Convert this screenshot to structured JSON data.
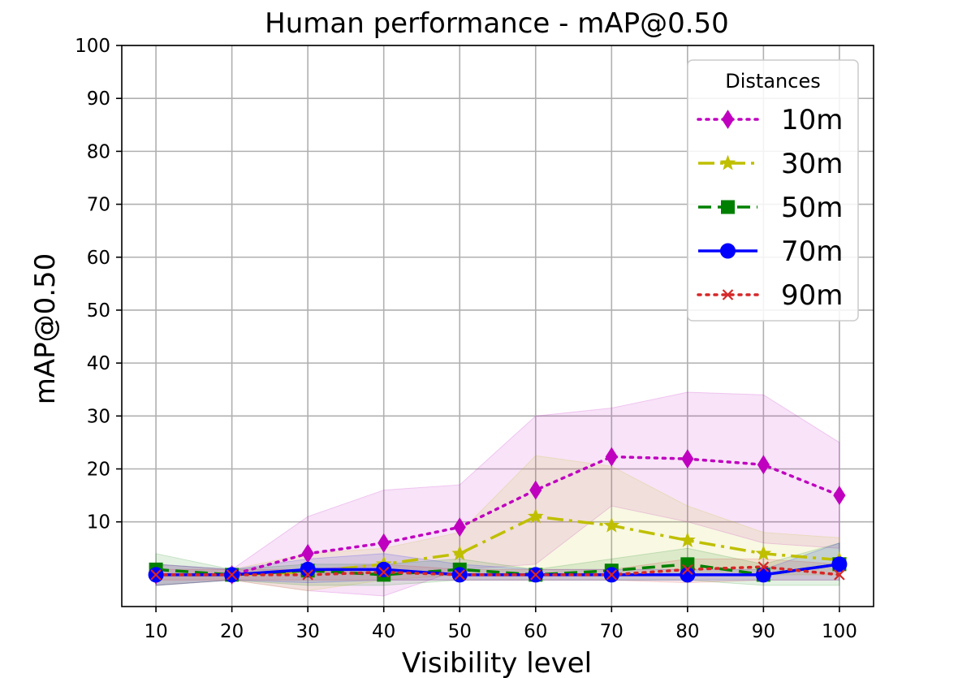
{
  "chart_data": {
    "type": "line",
    "title": "Human performance - mAP@0.50",
    "xlabel": "Visibility level",
    "ylabel": "mAP@0.50",
    "x": [
      10,
      20,
      30,
      40,
      50,
      60,
      70,
      80,
      90,
      100
    ],
    "xlim": [
      5.5,
      104.5
    ],
    "ylim": [
      -6,
      100
    ],
    "xticks": [
      "10",
      "20",
      "30",
      "40",
      "50",
      "60",
      "70",
      "80",
      "90",
      "100"
    ],
    "yticks": [
      "10",
      "20",
      "30",
      "40",
      "50",
      "60",
      "70",
      "80",
      "90",
      "100"
    ],
    "grid": true,
    "legend_title": "Distances",
    "legend_position": "upper right",
    "series": [
      {
        "name": "10m",
        "color": "#bf00bf",
        "linestyle": "dotted",
        "marker": "thin-diamond",
        "values": [
          0,
          0,
          4,
          6,
          9,
          16,
          22.3,
          21.9,
          20.8,
          15
        ],
        "lower": [
          -2,
          -1,
          -3,
          -4,
          1,
          2,
          13,
          10,
          6,
          5
        ],
        "upper": [
          2,
          1,
          11,
          16,
          17,
          30,
          31.5,
          34.5,
          34,
          25
        ]
      },
      {
        "name": "30m",
        "color": "#bfbf00",
        "linestyle": "dashdot",
        "marker": "star",
        "values": [
          0,
          0,
          0.5,
          2,
          4,
          11,
          9.3,
          6.5,
          4,
          2.8
        ],
        "lower": [
          -2,
          -1,
          -3,
          -1,
          0,
          0,
          0,
          0,
          0,
          0
        ],
        "upper": [
          2,
          1,
          4,
          5,
          8,
          22.5,
          20.5,
          13,
          8,
          7
        ]
      },
      {
        "name": "50m",
        "color": "#008000",
        "linestyle": "dashed",
        "marker": "square",
        "values": [
          1,
          0,
          0.8,
          0,
          1,
          0,
          0.8,
          2,
          0,
          2
        ],
        "lower": [
          -2,
          -1,
          -2,
          -2,
          -1,
          -1,
          -1,
          -1,
          -2,
          -2
        ],
        "upper": [
          4,
          1,
          2,
          2,
          3,
          1,
          3,
          5,
          2,
          6
        ]
      },
      {
        "name": "70m",
        "color": "#0000ff",
        "linestyle": "solid",
        "marker": "circle",
        "values": [
          0,
          0,
          1,
          1,
          0,
          0,
          0,
          0,
          0,
          2
        ],
        "lower": [
          -2,
          -1,
          -1.5,
          -1,
          -1,
          -1,
          -1,
          -1,
          -1,
          -1
        ],
        "upper": [
          2,
          1,
          3,
          4,
          2,
          1,
          1,
          1,
          1,
          6
        ]
      },
      {
        "name": "90m",
        "color": "#d62728",
        "linestyle": "dotted",
        "marker": "x",
        "values": [
          0,
          0,
          0,
          0.5,
          0,
          0,
          0,
          1,
          1.5,
          0
        ],
        "lower": [
          -1,
          -1,
          -1,
          -1,
          -1,
          -1,
          -1,
          -1.5,
          -1,
          -1
        ],
        "upper": [
          1,
          1,
          1,
          2,
          1,
          1,
          1,
          3,
          3,
          2
        ]
      }
    ]
  }
}
